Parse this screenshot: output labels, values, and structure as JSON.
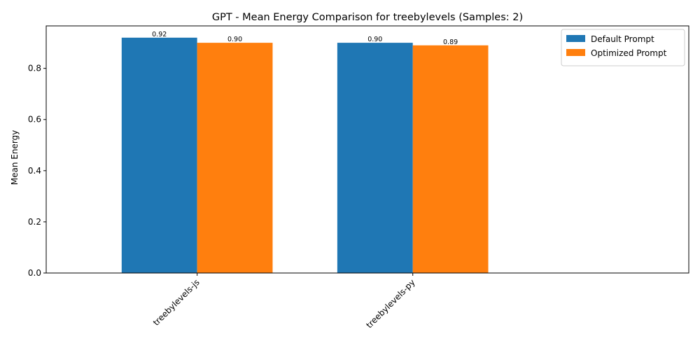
{
  "chart_data": {
    "type": "bar",
    "title": "GPT - Mean Energy Comparison for treebylevels (Samples: 2)",
    "xlabel": "",
    "ylabel": "Mean Energy",
    "categories": [
      "treebylevels-js",
      "treebylevels-py"
    ],
    "series": [
      {
        "name": "Default Prompt",
        "values": [
          0.92,
          0.9
        ],
        "labels": [
          "0.92",
          "0.90"
        ],
        "color": "#1f77b4"
      },
      {
        "name": "Optimized Prompt",
        "values": [
          0.9,
          0.89
        ],
        "labels": [
          "0.90",
          "0.89"
        ],
        "color": "#ff7f0e"
      }
    ],
    "ylim": [
      0,
      0.966
    ],
    "yticks": [
      "0.0",
      "0.2",
      "0.4",
      "0.6",
      "0.8"
    ],
    "grid": false,
    "legend_position": "top-right"
  }
}
